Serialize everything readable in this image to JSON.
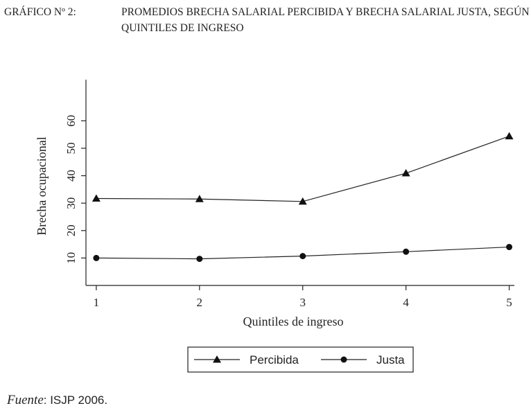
{
  "header": {
    "label": "GRÁFICO Nº 2:",
    "title": "PROMEDIOS BRECHA SALARIAL PERCIBIDA Y BRECHA SALARIAL JUSTA, SEGÚN QUINTILES DE INGRESO"
  },
  "chart_data": {
    "type": "line",
    "x": [
      1,
      2,
      3,
      4,
      5
    ],
    "xticks": [
      "1",
      "2",
      "3",
      "4",
      "5"
    ],
    "yticks": [
      "10",
      "20",
      "30",
      "40",
      "50",
      "60"
    ],
    "xlabel": "Quintiles de ingreso",
    "ylabel": "Brecha ocupacional",
    "xlim": [
      0.9,
      5.05
    ],
    "ylim": [
      0,
      75
    ],
    "grid": false,
    "legend": "bottom",
    "series": [
      {
        "name": "Percibida",
        "marker": "triangle",
        "values": [
          31.7,
          31.5,
          30.6,
          40.9,
          54.4
        ]
      },
      {
        "name": "Justa",
        "marker": "circle",
        "values": [
          10.0,
          9.7,
          10.7,
          12.3,
          14.0
        ]
      }
    ]
  },
  "source": {
    "label": "Fuente",
    "text": ": ISJP 2006."
  }
}
